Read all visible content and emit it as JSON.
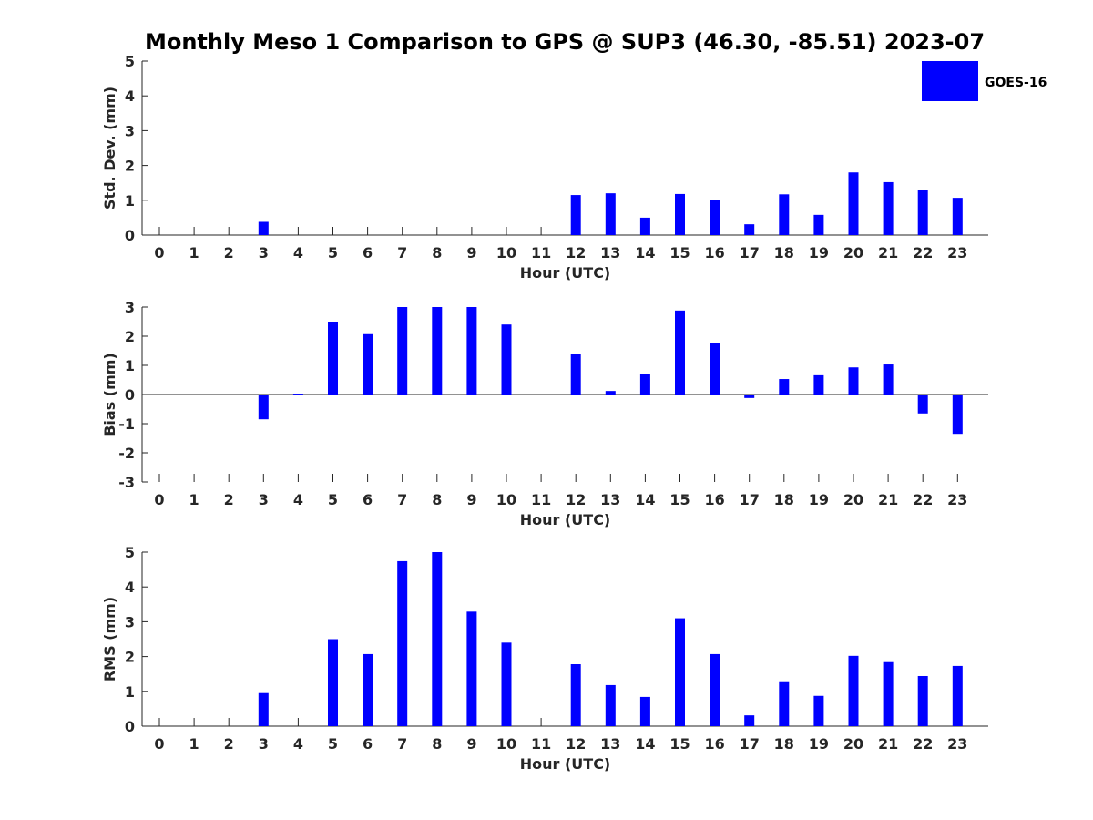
{
  "figure": {
    "title": "Monthly Meso 1 Comparison to GPS @ SUP3 (46.30, -85.51) 2023-07"
  },
  "chart_data": [
    {
      "type": "bar",
      "id": "std",
      "ylabel": "Std. Dev. (mm)",
      "xlabel": "Hour (UTC)",
      "categories": [
        "0",
        "1",
        "2",
        "3",
        "4",
        "5",
        "6",
        "7",
        "8",
        "9",
        "10",
        "11",
        "12",
        "13",
        "14",
        "15",
        "16",
        "17",
        "18",
        "19",
        "20",
        "21",
        "22",
        "23"
      ],
      "ylim": [
        0,
        5
      ],
      "yticks": [
        "0",
        "1",
        "2",
        "3",
        "4",
        "5"
      ],
      "series": [
        {
          "name": "GOES-16",
          "color": "#0000ff",
          "values": [
            null,
            null,
            null,
            0.38,
            null,
            null,
            null,
            null,
            null,
            null,
            null,
            null,
            1.15,
            1.2,
            0.5,
            1.18,
            1.02,
            0.31,
            1.17,
            0.58,
            1.8,
            1.52,
            1.3,
            1.07
          ]
        }
      ],
      "legend": {
        "position": "top-right",
        "entries": [
          "GOES-16"
        ]
      }
    },
    {
      "type": "bar",
      "id": "bias",
      "ylabel": "Bias (mm)",
      "xlabel": "Hour (UTC)",
      "categories": [
        "0",
        "1",
        "2",
        "3",
        "4",
        "5",
        "6",
        "7",
        "8",
        "9",
        "10",
        "11",
        "12",
        "13",
        "14",
        "15",
        "16",
        "17",
        "18",
        "19",
        "20",
        "21",
        "22",
        "23"
      ],
      "ylim": [
        -3,
        3
      ],
      "yticks": [
        "-3",
        "-2",
        "-1",
        "0",
        "1",
        "2",
        "3"
      ],
      "series": [
        {
          "name": "GOES-16",
          "color": "#0000ff",
          "values": [
            null,
            null,
            null,
            -0.85,
            0.03,
            2.5,
            2.07,
            3.0,
            3.0,
            3.0,
            2.4,
            null,
            1.38,
            0.12,
            0.69,
            2.88,
            1.78,
            -0.12,
            0.53,
            0.66,
            0.93,
            1.03,
            -0.65,
            -1.35
          ]
        }
      ]
    },
    {
      "type": "bar",
      "id": "rms",
      "ylabel": "RMS (mm)",
      "xlabel": "Hour (UTC)",
      "categories": [
        "0",
        "1",
        "2",
        "3",
        "4",
        "5",
        "6",
        "7",
        "8",
        "9",
        "10",
        "11",
        "12",
        "13",
        "14",
        "15",
        "16",
        "17",
        "18",
        "19",
        "20",
        "21",
        "22",
        "23"
      ],
      "ylim": [
        0,
        5
      ],
      "yticks": [
        "0",
        "1",
        "2",
        "3",
        "4",
        "5"
      ],
      "series": [
        {
          "name": "GOES-16",
          "color": "#0000ff",
          "values": [
            null,
            null,
            null,
            0.95,
            null,
            2.5,
            2.07,
            4.74,
            5.0,
            3.29,
            2.4,
            null,
            1.78,
            1.18,
            0.84,
            3.1,
            2.07,
            0.31,
            1.29,
            0.87,
            2.02,
            1.84,
            1.44,
            1.73
          ]
        }
      ]
    }
  ]
}
